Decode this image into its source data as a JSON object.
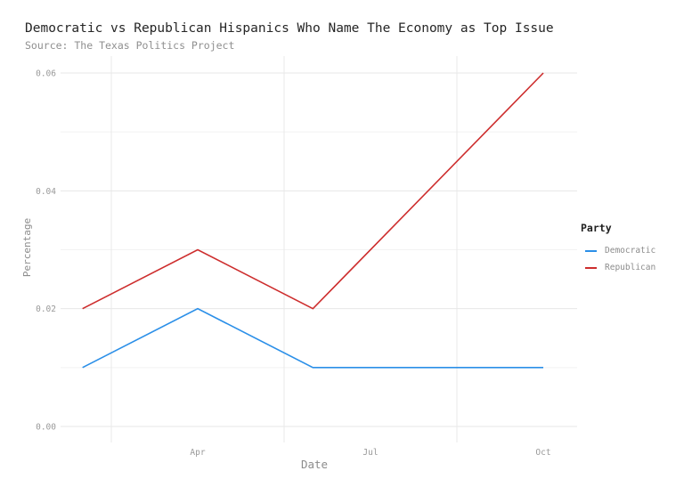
{
  "chart": {
    "title": "Democratic vs Republican Hispanics Who Name The Economy as Top Issue",
    "subtitle": "Source: The Texas Politics Project",
    "xlabel": "Date",
    "ylabel": "Percentage"
  },
  "legend": {
    "title": "Party",
    "items": [
      {
        "label": "Democratic",
        "color": "#2b8fe8"
      },
      {
        "label": "Republican",
        "color": "#cd2d2d"
      }
    ]
  },
  "style": {
    "grid_major_color": "#e7e7e7",
    "grid_minor_color": "#f2f2f2",
    "grid_minor_vertical_color": "#e9e9e9",
    "tick_label_color": "#999999",
    "line_width": 1.6
  },
  "chart_data": {
    "type": "line",
    "title": "Democratic vs Republican Hispanics Who Name The Economy as Top Issue",
    "subtitle": "Source: The Texas Politics Project",
    "xlabel": "Date",
    "ylabel": "Percentage",
    "x_unit": "month",
    "x_months": [
      2,
      4,
      6,
      10
    ],
    "x_month_names": [
      "Feb",
      "Apr",
      "Jun",
      "Oct"
    ],
    "series": [
      {
        "name": "Democratic",
        "color": "#2b8fe8",
        "values": [
          0.01,
          0.02,
          0.01,
          0.01
        ]
      },
      {
        "name": "Republican",
        "color": "#cd2d2d",
        "values": [
          0.02,
          0.03,
          0.02,
          0.06
        ]
      }
    ],
    "x_ticks": [
      {
        "label": "Apr",
        "month": 4
      },
      {
        "label": "Jul",
        "month": 7
      },
      {
        "label": "Oct",
        "month": 10
      }
    ],
    "x_minor_months": [
      2.5,
      5.5,
      8.5
    ],
    "y_ticks": [
      0.0,
      0.02,
      0.04,
      0.06
    ],
    "y_minor_ticks": [
      0.01,
      0.03,
      0.05
    ],
    "ylim": [
      0,
      0.06
    ],
    "grid": true,
    "legend_position": "right"
  }
}
